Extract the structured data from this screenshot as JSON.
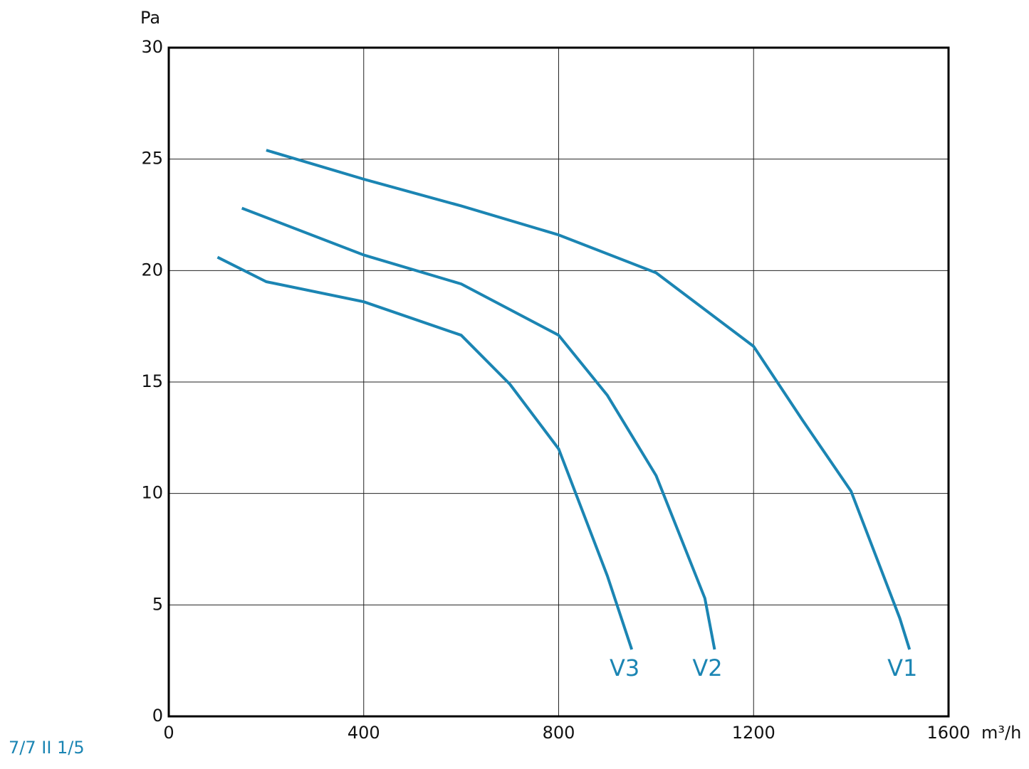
{
  "chart_data": {
    "type": "line",
    "y_label": "Pa",
    "x_label": "m³/h",
    "footer": "7/7 II 1/5",
    "xlim": [
      0,
      1600
    ],
    "xticks": [
      0,
      400,
      800,
      1200,
      1600
    ],
    "ylim": [
      0,
      30
    ],
    "yticks": [
      0,
      5,
      10,
      15,
      20,
      25,
      30
    ],
    "grid": true,
    "series": [
      {
        "name": "V1",
        "color": "#1b85b3",
        "x": [
          200,
          400,
          600,
          800,
          1000,
          1200,
          1300,
          1400,
          1500,
          1520
        ],
        "values": [
          25.4,
          24.1,
          22.9,
          21.6,
          19.9,
          16.6,
          13.3,
          10.1,
          4.4,
          3.0
        ]
      },
      {
        "name": "V2",
        "color": "#1b85b3",
        "x": [
          150,
          400,
          600,
          800,
          900,
          1000,
          1100,
          1120
        ],
        "values": [
          22.8,
          20.7,
          19.4,
          17.1,
          14.4,
          10.8,
          5.3,
          3.0
        ]
      },
      {
        "name": "V3",
        "color": "#1b85b3",
        "x": [
          100,
          200,
          400,
          600,
          700,
          800,
          900,
          950
        ],
        "values": [
          20.6,
          19.5,
          18.6,
          17.1,
          14.9,
          12.0,
          6.3,
          3.0
        ]
      }
    ]
  }
}
